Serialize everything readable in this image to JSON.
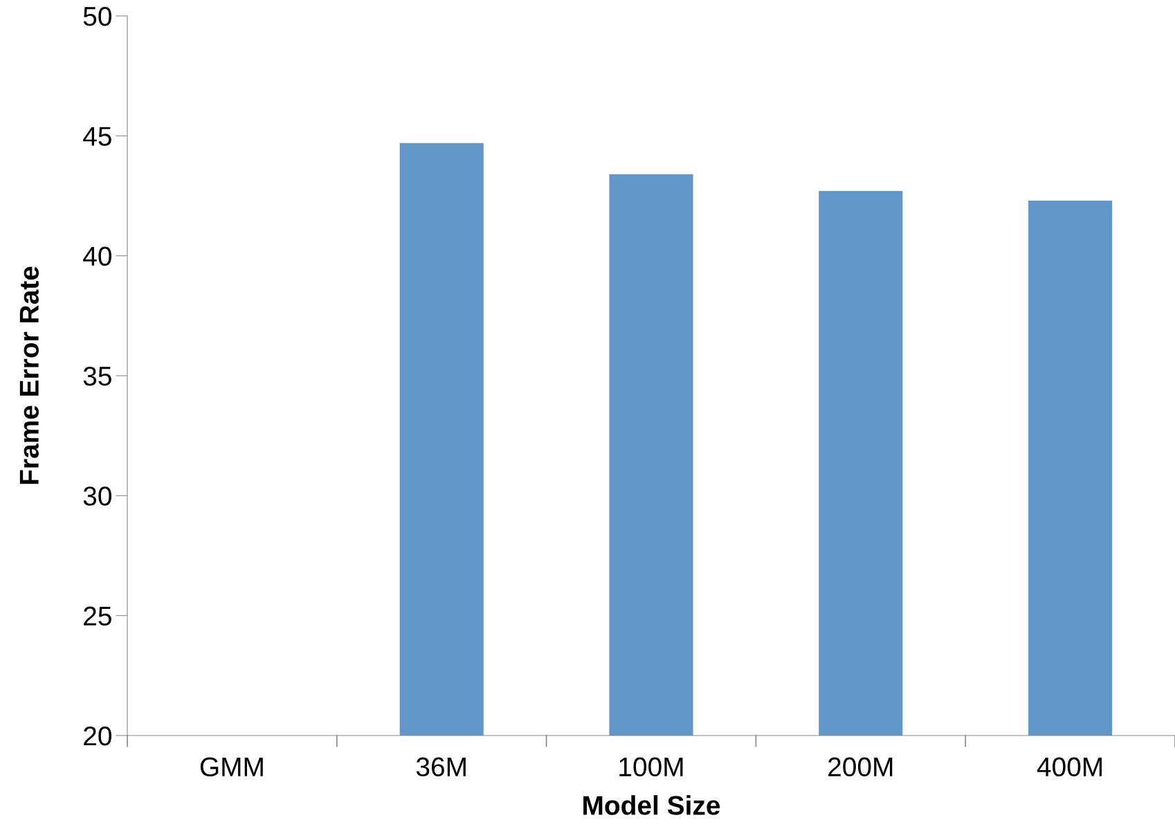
{
  "chart_data": {
    "type": "bar",
    "xlabel": "Model Size",
    "ylabel": "Frame Error Rate",
    "categories": [
      "GMM",
      "36M",
      "100M",
      "200M",
      "400M"
    ],
    "values": [
      null,
      44.7,
      43.4,
      42.7,
      42.3
    ],
    "color": "#6096c8",
    "ylim": [
      20,
      50
    ],
    "yticks": [
      20,
      25,
      30,
      35,
      40,
      45,
      50
    ],
    "grid": false,
    "legend": false
  }
}
